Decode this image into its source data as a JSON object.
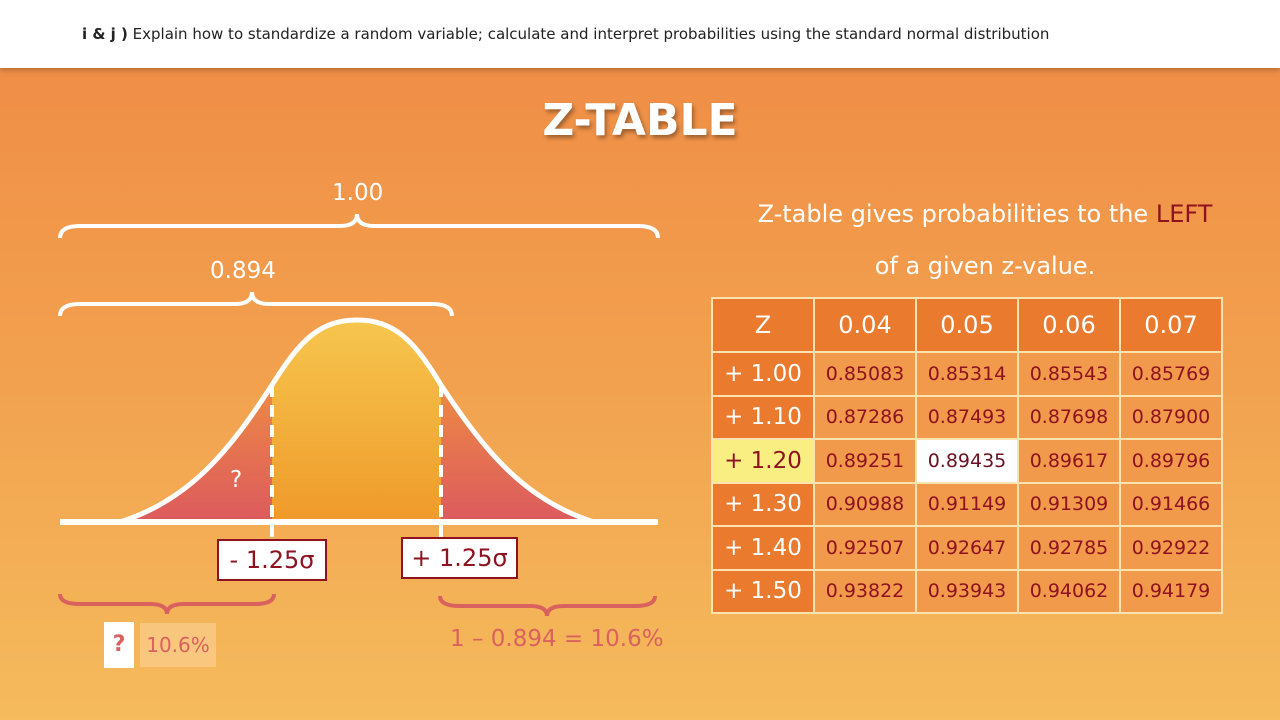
{
  "header": {
    "prefix": "i & j )",
    "text": " Explain how to standardize a random variable; calculate and interpret probabilities using the standard normal distribution"
  },
  "title": "Z-TABLE",
  "diagram": {
    "total_label": "1.00",
    "middle_label": "0.894",
    "question_mark": "?",
    "left_z": "- 1.25σ",
    "right_z": "+ 1.25σ",
    "left_tail_label": "10.6%",
    "left_tail_cover": "?",
    "right_tail_label": "1 – 0.894 = 10.6%"
  },
  "description": {
    "line1_a": "Z-table gives probabilities to the ",
    "line1_b": "LEFT",
    "line2": "of a given z-value."
  },
  "ztable": {
    "headers": [
      "Z",
      "0.04",
      "0.05",
      "0.06",
      "0.07"
    ],
    "rows": [
      {
        "z": "+ 1.00",
        "v": [
          "0.85083",
          "0.85314",
          "0.85543",
          "0.85769"
        ]
      },
      {
        "z": "+ 1.10",
        "v": [
          "0.87286",
          "0.87493",
          "0.87698",
          "0.87900"
        ]
      },
      {
        "z": "+ 1.20",
        "v": [
          "0.89251",
          "0.89435",
          "0.89617",
          "0.89796"
        ]
      },
      {
        "z": "+ 1.30",
        "v": [
          "0.90988",
          "0.91149",
          "0.91309",
          "0.91466"
        ]
      },
      {
        "z": "+ 1.40",
        "v": [
          "0.92507",
          "0.92647",
          "0.92785",
          "0.92922"
        ]
      },
      {
        "z": "+ 1.50",
        "v": [
          "0.93822",
          "0.93943",
          "0.94062",
          "0.94179"
        ]
      }
    ],
    "highlight_col": "0.05",
    "highlight_row": "+ 1.20",
    "selected_value": "0.89435"
  },
  "colors": {
    "accent_red": "#8e1220",
    "highlight": "#f8ee82",
    "header": "#e97a2e"
  }
}
